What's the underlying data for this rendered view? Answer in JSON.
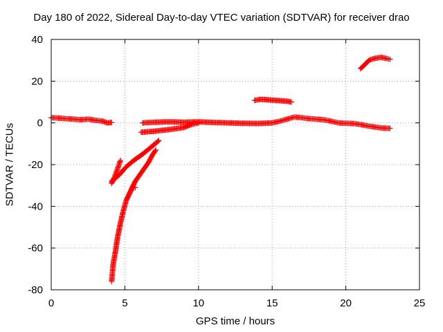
{
  "chart_data": {
    "type": "scatter",
    "title": "Day 180 of 2022, Sidereal Day-to-day VTEC variation (SDTVAR) for receiver drao",
    "xlabel": "GPS time / hours",
    "ylabel": "SDTVAR / TECUs",
    "xlim": [
      0,
      25
    ],
    "ylim": [
      -80,
      40
    ],
    "xticks": [
      "0",
      "5",
      "10",
      "15",
      "20",
      "25"
    ],
    "yticks": [
      "-80",
      "-60",
      "-40",
      "-20",
      "0",
      "20",
      "40"
    ],
    "grid": true,
    "marker": "+",
    "color": "#ff0000",
    "series": [
      {
        "points": [
          [
            0,
            2.5
          ],
          [
            0.5,
            2.3
          ],
          [
            1,
            2
          ],
          [
            1.5,
            1.8
          ],
          [
            2,
            1.5
          ],
          [
            2.5,
            1.8
          ],
          [
            3,
            1.2
          ],
          [
            3.5,
            0.8
          ],
          [
            3.8,
            0
          ],
          [
            4.1,
            0.2
          ]
        ]
      },
      {
        "points": [
          [
            4.1,
            -76
          ],
          [
            4.15,
            -72
          ],
          [
            4.2,
            -68
          ],
          [
            4.35,
            -62
          ],
          [
            4.5,
            -55
          ],
          [
            4.7,
            -48
          ],
          [
            4.9,
            -42
          ],
          [
            5.1,
            -37
          ],
          [
            5.3,
            -34
          ],
          [
            5.5,
            -31
          ],
          [
            5.7,
            -31
          ]
        ]
      },
      {
        "points": [
          [
            5.5,
            -31
          ],
          [
            5.7,
            -28
          ],
          [
            6.0,
            -25
          ],
          [
            6.3,
            -22
          ],
          [
            6.6,
            -19
          ],
          [
            6.9,
            -15
          ],
          [
            7.1,
            -13
          ]
        ]
      },
      {
        "points": [
          [
            4.1,
            -29
          ],
          [
            4.3,
            -26
          ],
          [
            4.5,
            -22
          ],
          [
            4.7,
            -18
          ]
        ]
      },
      {
        "points": [
          [
            4.1,
            -28
          ],
          [
            4.6,
            -25
          ],
          [
            5.1,
            -21
          ],
          [
            5.6,
            -18
          ],
          [
            6.2,
            -15
          ],
          [
            6.8,
            -11.5
          ],
          [
            7.3,
            -8.5
          ]
        ]
      },
      {
        "points": [
          [
            6.1,
            -4.5
          ],
          [
            7,
            -4
          ],
          [
            8,
            -3.2
          ],
          [
            9,
            -2.2
          ],
          [
            9.5,
            -0.8
          ],
          [
            10,
            0
          ]
        ]
      },
      {
        "points": [
          [
            6.2,
            0
          ],
          [
            7,
            0.3
          ],
          [
            8,
            0.5
          ],
          [
            9,
            0.3
          ],
          [
            10,
            0.5
          ],
          [
            11,
            0.2
          ],
          [
            12,
            0
          ],
          [
            13,
            -0.2
          ],
          [
            14,
            -0.3
          ],
          [
            15,
            0
          ],
          [
            15.5,
            0.8
          ],
          [
            16,
            1.8
          ],
          [
            16.5,
            2.8
          ],
          [
            17,
            2.5
          ],
          [
            17.5,
            2
          ],
          [
            18,
            1.8
          ],
          [
            18.5,
            1.5
          ],
          [
            19,
            0.8
          ],
          [
            19.5,
            0
          ],
          [
            20,
            -0.2
          ],
          [
            20.5,
            -0.3
          ],
          [
            21,
            -0.8
          ],
          [
            21.5,
            -1.5
          ],
          [
            22,
            -2
          ],
          [
            22.5,
            -2.5
          ],
          [
            23,
            -2.6
          ]
        ]
      },
      {
        "points": [
          [
            13.8,
            10.8
          ],
          [
            14.2,
            11.3
          ],
          [
            14.8,
            11
          ],
          [
            15.4,
            10.7
          ],
          [
            16,
            10.4
          ],
          [
            16.3,
            10
          ]
        ]
      },
      {
        "points": [
          [
            21,
            26
          ],
          [
            21.3,
            28
          ],
          [
            21.6,
            30.2
          ],
          [
            22,
            31
          ],
          [
            22.4,
            31.4
          ],
          [
            22.8,
            30.8
          ],
          [
            23,
            30.5
          ]
        ]
      }
    ]
  }
}
